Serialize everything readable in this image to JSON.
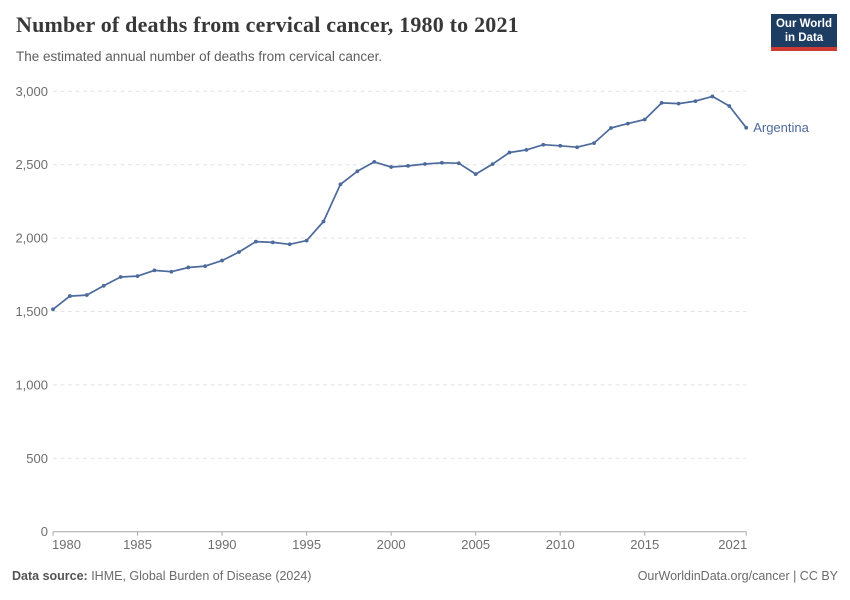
{
  "header": {
    "title": "Number of deaths from cervical cancer, 1980 to 2021",
    "subtitle": "The estimated annual number of deaths from cervical cancer."
  },
  "logo": {
    "line1": "Our World",
    "line2": "in Data"
  },
  "footer": {
    "source_label": "Data source:",
    "source_value": " IHME, Global Burden of Disease (2024)",
    "license": "OurWorldinData.org/cancer | CC BY"
  },
  "colors": {
    "line": "#4c6a9c",
    "entity_label": "#4c6a9c",
    "grid": "#e3e3e3",
    "axis": "#a8a8a8",
    "tick_text": "#6e6e6e",
    "logo_bg": "#1d3d63",
    "logo_bar": "#cf3b33"
  },
  "chart_data": {
    "type": "line",
    "title": "Number of deaths from cervical cancer, 1980 to 2021",
    "subtitle": "The estimated annual number of deaths from cervical cancer.",
    "xlabel": "",
    "ylabel": "",
    "xlim": [
      1980,
      2021
    ],
    "ylim": [
      0,
      3000
    ],
    "grid": "horizontal-dashed",
    "legend_position": "end-of-line-label",
    "xticks": [
      1980,
      1985,
      1990,
      1995,
      2000,
      2005,
      2010,
      2015,
      2021
    ],
    "yticks": [
      0,
      500,
      1000,
      1500,
      2000,
      2500,
      3000
    ],
    "series": [
      {
        "name": "Argentina",
        "x": [
          1980,
          1981,
          1982,
          1983,
          1984,
          1985,
          1986,
          1987,
          1988,
          1989,
          1990,
          1991,
          1992,
          1993,
          1994,
          1995,
          1996,
          1997,
          1998,
          1999,
          2000,
          2001,
          2002,
          2003,
          2004,
          2005,
          2006,
          2007,
          2008,
          2009,
          2010,
          2011,
          2012,
          2013,
          2014,
          2015,
          2016,
          2017,
          2018,
          2019,
          2020,
          2021
        ],
        "values": [
          1515,
          1605,
          1612,
          1675,
          1735,
          1741,
          1780,
          1771,
          1800,
          1809,
          1847,
          1905,
          1976,
          1971,
          1958,
          1983,
          2113,
          2366,
          2455,
          2519,
          2484,
          2492,
          2505,
          2513,
          2510,
          2436,
          2504,
          2583,
          2601,
          2636,
          2629,
          2619,
          2647,
          2750,
          2780,
          2808,
          2921,
          2916,
          2933,
          2965,
          2900,
          2752
        ]
      }
    ]
  }
}
